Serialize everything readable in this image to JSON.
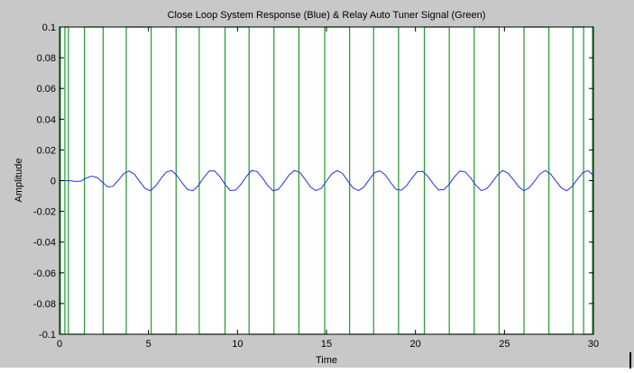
{
  "chart_data": {
    "type": "line",
    "title": "Close Loop System Response (Blue) & Relay Auto Tuner Signal (Green)",
    "xlabel": "Time",
    "ylabel": "Amplitude",
    "xlim": [
      0,
      30
    ],
    "ylim": [
      -0.1,
      0.1
    ],
    "x_ticks": [
      0,
      5,
      10,
      15,
      20,
      25,
      30
    ],
    "x_tick_labels": [
      "0",
      "5",
      "10",
      "15",
      "20",
      "25",
      "30"
    ],
    "y_ticks": [
      0.1,
      0.08,
      0.06,
      0.04,
      0.02,
      0,
      -0.02,
      -0.04,
      -0.06,
      -0.08,
      -0.1
    ],
    "y_tick_labels": [
      "0.1",
      "0.08",
      "0.06",
      "0.04",
      "0.02",
      "0",
      "-0.02",
      "-0.04",
      "-0.06",
      "-0.08",
      "-0.1"
    ],
    "grid": false,
    "legend": "none",
    "series": [
      {
        "color": "#2030e0",
        "x": [
          0,
          0.3,
          0.6,
          0.9,
          1.2,
          1.5,
          1.8,
          2.1,
          2.4,
          2.7,
          3.0,
          3.3,
          3.6,
          3.9,
          4.2,
          4.5,
          4.8,
          5.1,
          5.4,
          5.7,
          6.0,
          6.3,
          6.6,
          6.9,
          7.2,
          7.5,
          7.8,
          8.1,
          8.4,
          8.7,
          9.0,
          9.3,
          9.6,
          9.9,
          10.2,
          10.5,
          10.8,
          11.1,
          11.4,
          11.7,
          12.0,
          12.3,
          12.6,
          12.9,
          13.2,
          13.5,
          13.8,
          14.1,
          14.4,
          14.7,
          15.0,
          15.3,
          15.6,
          15.9,
          16.2,
          16.5,
          16.8,
          17.1,
          17.4,
          17.7,
          18.0,
          18.3,
          18.6,
          18.9,
          19.2,
          19.5,
          19.8,
          20.1,
          20.4,
          20.7,
          21.0,
          21.3,
          21.6,
          21.9,
          22.2,
          22.5,
          22.8,
          23.1,
          23.4,
          23.7,
          24.0,
          24.3,
          24.6,
          24.9,
          25.2,
          25.5,
          25.8,
          26.1,
          26.4,
          26.7,
          27.0,
          27.3,
          27.6,
          27.9,
          28.2,
          28.5,
          28.8,
          29.1,
          29.4,
          29.7,
          30.0
        ],
        "y": [
          0.0,
          0.0,
          -0.0001,
          -0.0005,
          -0.0004,
          0.0017,
          0.0029,
          0.0021,
          -0.0009,
          -0.0041,
          -0.0037,
          0.0002,
          0.0045,
          0.0063,
          0.0043,
          -0.0004,
          -0.0051,
          -0.0066,
          -0.0035,
          0.0014,
          0.0056,
          0.0066,
          0.0033,
          -0.0016,
          -0.0059,
          -0.0065,
          -0.0032,
          0.0019,
          0.0062,
          0.0064,
          0.0028,
          -0.0024,
          -0.0065,
          -0.0061,
          -0.0023,
          0.0028,
          0.0066,
          0.0059,
          0.0018,
          -0.0032,
          -0.0066,
          -0.0057,
          -0.0013,
          0.0037,
          0.0066,
          0.0054,
          0.0009,
          -0.0041,
          -0.0065,
          -0.0051,
          -0.0003,
          0.0045,
          0.0065,
          0.0047,
          -0.0002,
          -0.0049,
          -0.0065,
          -0.0042,
          0.0006,
          0.0052,
          0.0064,
          0.0038,
          -0.0011,
          -0.0056,
          -0.0063,
          -0.0033,
          0.0016,
          0.0059,
          0.0061,
          0.0028,
          -0.0021,
          -0.0061,
          -0.0058,
          -0.0023,
          0.0026,
          0.0063,
          0.0056,
          0.0018,
          -0.0031,
          -0.0065,
          -0.0053,
          -0.0012,
          0.0036,
          0.0066,
          0.0049,
          0.0007,
          -0.004,
          -0.0066,
          -0.0046,
          -0.0002,
          0.0044,
          0.0066,
          0.0042,
          -0.0003,
          -0.0048,
          -0.0066,
          -0.0038,
          0.0009,
          0.0052,
          0.0065,
          0.0033
        ]
      },
      {
        "color": "#1f9a2b",
        "shape": "step",
        "switch_times": [
          0.05,
          0.3,
          0.5,
          1.4,
          2.45,
          3.75,
          5.15,
          6.55,
          7.85,
          9.3,
          10.65,
          12.05,
          13.45,
          14.9,
          16.3,
          17.65,
          19.05,
          20.5,
          21.9,
          23.3,
          24.7,
          26.1,
          27.5,
          28.85,
          29.45,
          29.95
        ],
        "levels": [
          0.1,
          -0.1
        ]
      }
    ]
  }
}
